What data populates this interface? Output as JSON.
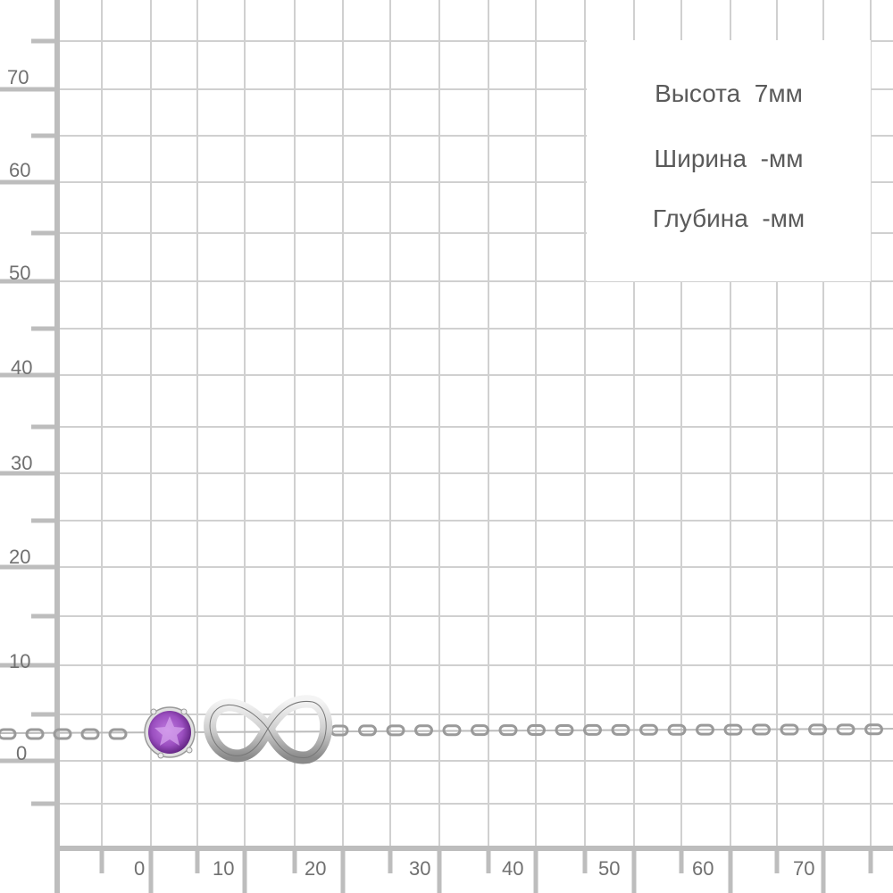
{
  "dimensions": {
    "height_label": "Высота  7мм",
    "width_label": "Ширина  -мм",
    "depth_label": "Глубина  -мм"
  },
  "axes": {
    "y_ticks": [
      "70",
      "60",
      "50",
      "40",
      "30",
      "20",
      "10",
      "0"
    ],
    "x_ticks": [
      "0",
      "10",
      "20",
      "30",
      "40",
      "50",
      "60",
      "70"
    ]
  },
  "product": {
    "type": "bracelet chain with infinity charm and round purple stone",
    "stone_color": "#9b4fc0",
    "metal_color": "#d9d9d9"
  },
  "colors": {
    "grid": "#d0d0d0",
    "axis": "#bdbdbd",
    "text": "#5a5a5a"
  }
}
